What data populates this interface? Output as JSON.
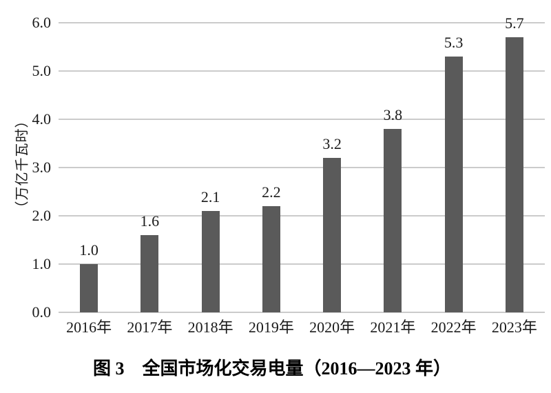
{
  "chart_data": {
    "type": "bar",
    "title": "图 3　全国市场化交易电量（2016—2023 年）",
    "categories": [
      "2016年",
      "2017年",
      "2018年",
      "2019年",
      "2020年",
      "2021年",
      "2022年",
      "2023年"
    ],
    "values": [
      1.0,
      1.6,
      2.1,
      2.2,
      3.2,
      3.8,
      5.3,
      5.7
    ],
    "value_labels": [
      "1.0",
      "1.6",
      "2.1",
      "2.2",
      "3.2",
      "3.8",
      "5.3",
      "5.7"
    ],
    "xlabel": "",
    "ylabel": "（万亿千瓦时）",
    "ylim": [
      0,
      6.0
    ],
    "yticks": [
      "0.0",
      "1.0",
      "2.0",
      "3.0",
      "4.0",
      "5.0",
      "6.0"
    ],
    "ytick_interval": 1.0,
    "grid": "horizontal",
    "legend": "none",
    "colors": {
      "bar": "#5a5a5a",
      "gridline": "#cbcbcb",
      "text": "#1a1a1a",
      "background": "#ffffff"
    }
  }
}
